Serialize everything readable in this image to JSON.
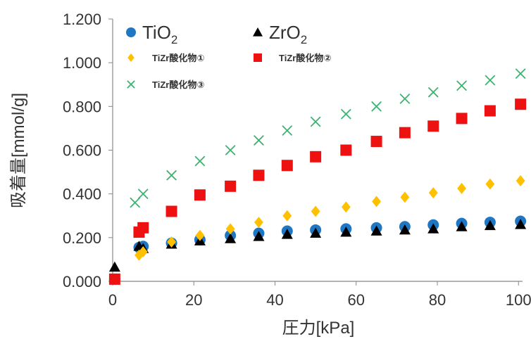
{
  "chart_data": {
    "type": "scatter",
    "xlabel": "圧力[kPa]",
    "ylabel": "吸着量[mmol/g]",
    "xlim": [
      0,
      101
    ],
    "ylim": [
      0,
      1.2
    ],
    "x_ticks": [
      "0",
      "20",
      "40",
      "60",
      "80",
      "100"
    ],
    "y_ticks": [
      "0.000",
      "0.200",
      "0.400",
      "0.600",
      "0.800",
      "1.000",
      "1.200"
    ],
    "grid": false,
    "legend_position": "top-left",
    "series": [
      {
        "name": "TiO2",
        "label_main": "TiO",
        "label_sub": "2",
        "marker": "circle",
        "color": "#1f77c4",
        "x": [
          0.5,
          6.5,
          7.5,
          14.5,
          21.5,
          29,
          36,
          43,
          50,
          57.5,
          65,
          72,
          79,
          86,
          93,
          100.5
        ],
        "y": [
          0.01,
          0.155,
          0.16,
          0.175,
          0.19,
          0.21,
          0.22,
          0.23,
          0.235,
          0.24,
          0.245,
          0.25,
          0.258,
          0.265,
          0.27,
          0.275
        ]
      },
      {
        "name": "ZrO2",
        "label_main": "ZrO",
        "label_sub": "2",
        "marker": "triangle",
        "color": "#000000",
        "x": [
          0.5,
          6.5,
          7.5,
          14.5,
          21.5,
          29,
          36,
          43,
          50,
          57.5,
          65,
          72,
          79,
          86,
          93,
          100.5
        ],
        "y": [
          0.065,
          0.16,
          0.15,
          0.17,
          0.185,
          0.195,
          0.205,
          0.215,
          0.22,
          0.225,
          0.23,
          0.235,
          0.24,
          0.25,
          0.255,
          0.26
        ]
      },
      {
        "name": "TiZr酸化物①",
        "marker": "diamond",
        "color": "#ffc000",
        "x": [
          0.5,
          6.5,
          7.5,
          14.5,
          21.5,
          29,
          36,
          43,
          50,
          57.5,
          65,
          72,
          79,
          86,
          93,
          100.5
        ],
        "y": [
          0.01,
          0.12,
          0.135,
          0.18,
          0.21,
          0.24,
          0.27,
          0.3,
          0.32,
          0.34,
          0.365,
          0.385,
          0.405,
          0.425,
          0.445,
          0.46
        ]
      },
      {
        "name": "TiZr酸化物②",
        "marker": "square",
        "color": "#ee1111",
        "x": [
          0.5,
          6.5,
          7.5,
          14.5,
          21.5,
          29,
          36,
          43,
          50,
          57.5,
          65,
          72,
          79,
          86,
          93,
          100.5
        ],
        "y": [
          0.01,
          0.225,
          0.245,
          0.32,
          0.395,
          0.435,
          0.485,
          0.53,
          0.57,
          0.6,
          0.64,
          0.68,
          0.71,
          0.745,
          0.78,
          0.81
        ]
      },
      {
        "name": "TiZr酸化物③",
        "marker": "x",
        "color": "#3cb371",
        "x": [
          5.5,
          7.5,
          14.5,
          21.5,
          29,
          36,
          43,
          50,
          57.5,
          65,
          72,
          79,
          86,
          93,
          100.5
        ],
        "y": [
          0.36,
          0.4,
          0.485,
          0.55,
          0.6,
          0.645,
          0.69,
          0.73,
          0.765,
          0.8,
          0.835,
          0.865,
          0.895,
          0.92,
          0.95
        ]
      }
    ]
  }
}
